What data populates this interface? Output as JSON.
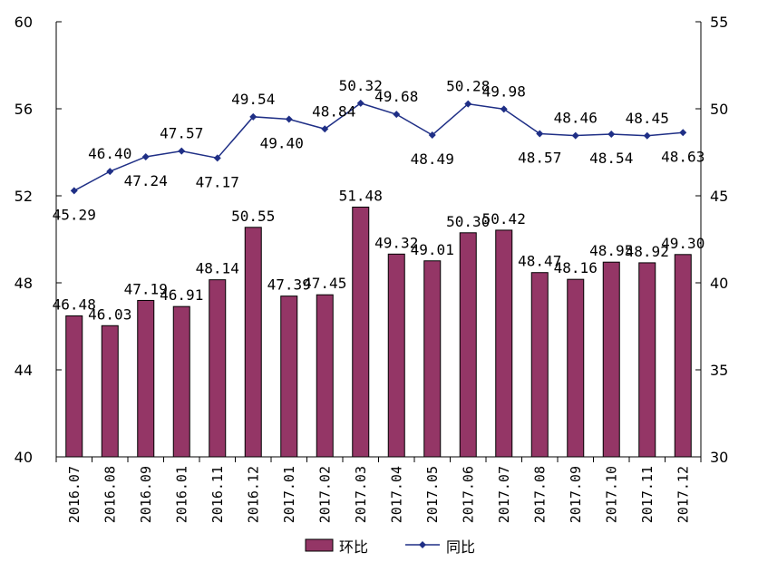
{
  "chart_data": {
    "type": "bar",
    "categories": [
      "2016.07",
      "2016.08",
      "2016.09",
      "2016.01",
      "2016.11",
      "2016.12",
      "2017.01",
      "2017.02",
      "2017.03",
      "2017.04",
      "2017.05",
      "2017.06",
      "2017.07",
      "2017.08",
      "2017.09",
      "2017.10",
      "2017.11",
      "2017.12"
    ],
    "series": [
      {
        "name": "环比",
        "type": "bar",
        "axis": "left",
        "color": "#943666",
        "values": [
          46.48,
          46.03,
          47.19,
          46.91,
          48.14,
          50.55,
          47.39,
          47.45,
          51.48,
          49.32,
          49.01,
          50.3,
          50.42,
          48.47,
          48.16,
          48.95,
          48.92,
          49.3
        ],
        "labels": [
          "46.48",
          "46.03",
          "47.19",
          "46.91",
          "48.14",
          "50.55",
          "47.39",
          "47.45",
          "51.48",
          "49.32",
          "49.01",
          "50.30",
          "50.42",
          "48.47",
          "48.16",
          "48.95",
          "48.92",
          "49.30"
        ]
      },
      {
        "name": "同比",
        "type": "line",
        "axis": "right",
        "color": "#1f2f86",
        "values": [
          45.29,
          46.4,
          47.24,
          47.57,
          47.17,
          49.54,
          49.4,
          48.84,
          50.32,
          49.68,
          48.49,
          50.28,
          49.98,
          48.57,
          48.46,
          48.54,
          48.45,
          48.63
        ],
        "labels": [
          "45.29",
          "46.40",
          "47.24",
          "47.57",
          "47.17",
          "49.54",
          "49.40",
          "48.84",
          "50.32",
          "49.68",
          "48.49",
          "50.28",
          "49.98",
          "48.57",
          "48.46",
          "48.54",
          "48.45",
          "48.63"
        ]
      }
    ],
    "y_left": {
      "min": 40,
      "max": 60,
      "ticks": [
        "40",
        "44",
        "48",
        "52",
        "56",
        "60"
      ]
    },
    "y_right": {
      "min": 30,
      "max": 55,
      "ticks": [
        "30",
        "35",
        "40",
        "45",
        "50",
        "55"
      ]
    },
    "grid": false,
    "legend": "bottom-center"
  }
}
